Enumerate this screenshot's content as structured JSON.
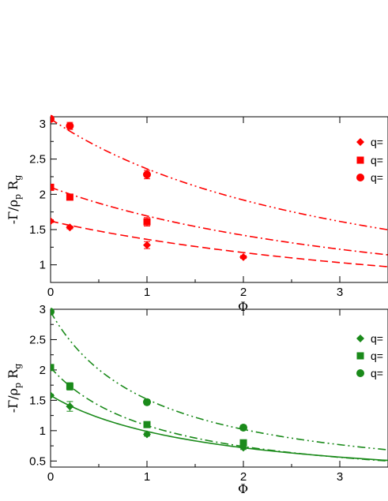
{
  "chart_data": [
    {
      "type": "scatter",
      "xlabel": "Φ",
      "ylabel": "-Γ/ρ",
      "ylabel_sub1": "p",
      "ylabel_mid": "R",
      "ylabel_sub2": "g",
      "xlim": [
        0,
        3.5
      ],
      "ylim": [
        0.75,
        3.1
      ],
      "xticks": [
        "0",
        "1",
        "2",
        "3"
      ],
      "yticks": [
        "1",
        "1.5",
        "2",
        "2.5",
        "3"
      ],
      "ytick_values": [
        1,
        1.5,
        2,
        2.5,
        3
      ],
      "xtick_values": [
        0,
        1,
        2,
        3
      ],
      "color": "#ff0000",
      "series": [
        {
          "marker": "diamond",
          "legend": "q=",
          "dash": "10,5",
          "points": [
            [
              0,
              1.62
            ],
            [
              0.2,
              1.53
            ],
            [
              1,
              1.28
            ],
            [
              2,
              1.11
            ]
          ],
          "errors": [
            0.02,
            0.02,
            0.05,
            0.02
          ],
          "curve": {
            "a": 1.62,
            "b": 0.19
          }
        },
        {
          "marker": "square",
          "legend": "q=",
          "dash": "10,4,2,4",
          "points": [
            [
              0,
              2.1
            ],
            [
              0.2,
              1.96
            ],
            [
              1,
              1.61
            ],
            [
              2,
              null
            ]
          ],
          "errors": [
            0.03,
            0.03,
            0.06,
            0
          ],
          "curve": {
            "a": 2.1,
            "b": 0.24
          }
        },
        {
          "marker": "circle",
          "legend": "q=",
          "dash": "10,4,2,4,2,4",
          "points": [
            [
              0,
              3.07
            ],
            [
              0.2,
              2.97
            ],
            [
              1,
              2.28
            ],
            [
              2,
              null
            ]
          ],
          "errors": [
            0.03,
            0.05,
            0.06,
            0
          ],
          "curve": {
            "a": 3.07,
            "b": 0.3
          }
        }
      ]
    },
    {
      "type": "scatter",
      "xlabel": "Φ",
      "ylabel": "-Γ/ρ",
      "ylabel_sub1": "p",
      "ylabel_mid": "R",
      "ylabel_sub2": "g",
      "xlim": [
        0,
        3.5
      ],
      "ylim": [
        0.4,
        3.0
      ],
      "xticks": [
        "0",
        "1",
        "2",
        "3"
      ],
      "yticks": [
        "0.5",
        "1",
        "1.5",
        "2",
        "2.5",
        "3"
      ],
      "ytick_values": [
        0.5,
        1,
        1.5,
        2,
        2.5,
        3
      ],
      "xtick_values": [
        0,
        1,
        2,
        3
      ],
      "color": "#1a8a1a",
      "series": [
        {
          "marker": "diamond",
          "legend": "q=",
          "dash": "none",
          "points": [
            [
              0,
              1.58
            ],
            [
              0.2,
              1.4
            ],
            [
              1,
              0.94
            ],
            [
              2,
              0.72
            ]
          ],
          "errors": [
            0.02,
            0.08,
            0.03,
            0.03
          ],
          "curve": {
            "a": 1.58,
            "b": 0.6
          }
        },
        {
          "marker": "square",
          "legend": "q=",
          "dash": "10,4,2,4",
          "points": [
            [
              0,
              2.04
            ],
            [
              0.2,
              1.73
            ],
            [
              1,
              1.1
            ],
            [
              2,
              0.8
            ]
          ],
          "errors": [
            0.02,
            0.06,
            0.03,
            0.03
          ],
          "curve": {
            "a": 2.04,
            "b": 0.88
          }
        },
        {
          "marker": "circle",
          "legend": "q=",
          "dash": "10,4,2,4,2,4",
          "points": [
            [
              0,
              2.96
            ],
            [
              0.2,
              null
            ],
            [
              1,
              1.47
            ],
            [
              2,
              1.05
            ]
          ],
          "errors": [
            0.02,
            0,
            0.04,
            0.04
          ],
          "curve": {
            "a": 2.96,
            "b": 0.95
          }
        }
      ]
    }
  ]
}
